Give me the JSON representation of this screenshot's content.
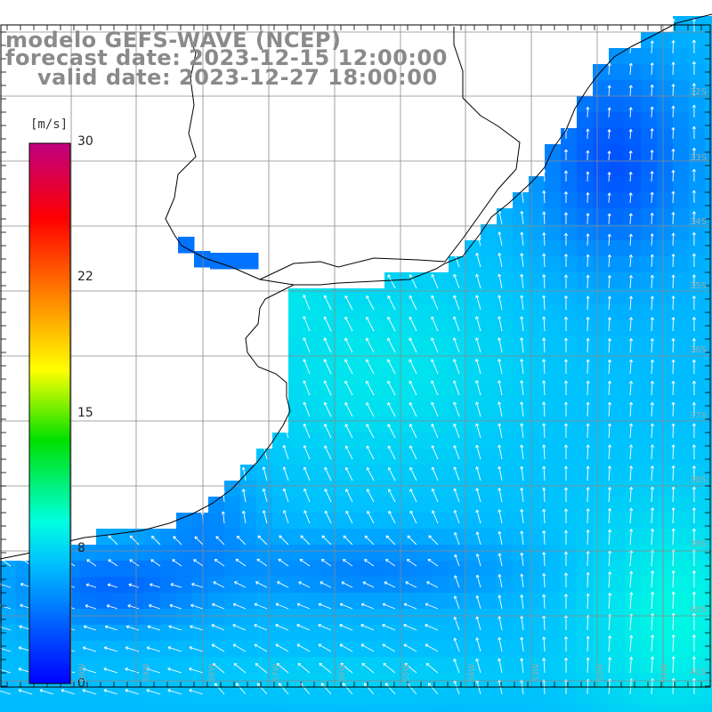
{
  "title": {
    "line1": "modelo GEFS-WAVE (NCEP)",
    "line2": "forecast date: 2023-12-15 12:00:00",
    "line3": "valid date: 2023-12-27 18:00:00"
  },
  "colorbar": {
    "unit": "[m/s]",
    "ticks": [
      "30",
      "22",
      "15",
      "8",
      "0"
    ],
    "colors": [
      "#0000ff",
      "#00c8ff",
      "#00ffe0",
      "#00e000",
      "#ffff00",
      "#ff8000",
      "#ff0000",
      "#c00080"
    ]
  },
  "lat_labels": [
    "32S",
    "33S",
    "34S",
    "35S",
    "36S",
    "37S",
    "38S",
    "39S",
    "40S",
    "41S"
  ],
  "lon_labels": [
    "60W",
    "59W",
    "58W",
    "57W",
    "56W",
    "55W",
    "54W",
    "53W",
    "52W",
    "51W"
  ],
  "colors": {
    "land": "#ffffff",
    "grid": "#8a8a8a",
    "coast": "#000000",
    "arrow": "#ffffff"
  }
}
